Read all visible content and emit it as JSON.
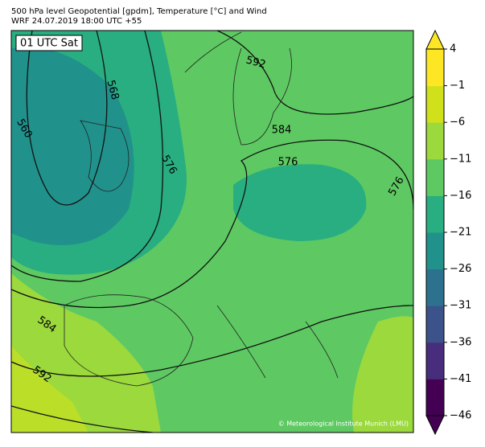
{
  "header": {
    "title_line1": "500 hPa level Geopotential [gpdm], Temperature [°C] and Wind",
    "title_line2": "WRF 24.07.2019 18:00 UTC +55"
  },
  "map": {
    "time_label": "01 UTC Sat",
    "contour_labels": [
      "592",
      "568",
      "560",
      "576",
      "584",
      "576",
      "576",
      "584",
      "592"
    ],
    "copyright": "© Meteorological Institute Munich (LMU)"
  },
  "colorbar": {
    "ticks": [
      {
        "value": 4,
        "label": "4"
      },
      {
        "value": -1,
        "label": "−1"
      },
      {
        "value": -6,
        "label": "−6"
      },
      {
        "value": -11,
        "label": "−11"
      },
      {
        "value": -16,
        "label": "−16"
      },
      {
        "value": -21,
        "label": "−21"
      },
      {
        "value": -26,
        "label": "−26"
      },
      {
        "value": -31,
        "label": "−31"
      },
      {
        "value": -36,
        "label": "−36"
      },
      {
        "value": -41,
        "label": "−41"
      },
      {
        "value": -46,
        "label": "−46"
      }
    ],
    "colors": [
      "#440154",
      "#472d7b",
      "#3b528b",
      "#2c728e",
      "#21918c",
      "#28ae80",
      "#5ec962",
      "#9bd93c",
      "#d0e11c",
      "#fde725"
    ],
    "extend_colors": [
      "#440154",
      "#fde725"
    ]
  }
}
